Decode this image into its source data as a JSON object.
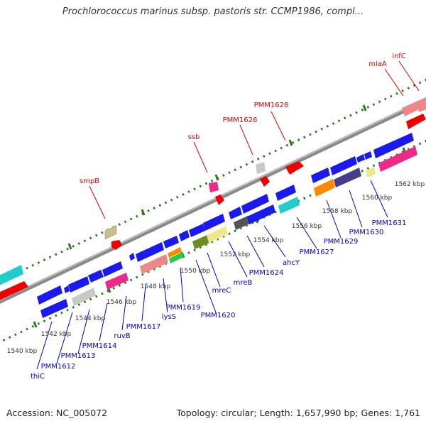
{
  "title": "Prochlorococcus marinus subsp. pastoris str. CCMP1986, compl...",
  "footer": {
    "accession": "Accession: NC_005072",
    "summary": "Topology: circular; Length: 1,657,990 bp; Genes: 1,761"
  },
  "colors": {
    "axis": "#888888",
    "dots": "#2a7a1a",
    "upper_label": "#dd0000",
    "lower_label": "#0000cc",
    "kbp_label": "#333333"
  },
  "scale_labels": [
    {
      "text": "1540 kbp",
      "kbp": 1540
    },
    {
      "text": "1542 kbp",
      "kbp": 1542
    },
    {
      "text": "1544 kbp",
      "kbp": 1544
    },
    {
      "text": "1546 kbp",
      "kbp": 1546
    },
    {
      "text": "1548 kbp",
      "kbp": 1548
    },
    {
      "text": "1550 kbp",
      "kbp": 1550
    },
    {
      "text": "1552 kbp",
      "kbp": 1552
    },
    {
      "text": "1554 kbp",
      "kbp": 1554
    },
    {
      "text": "1556 kbp",
      "kbp": 1556
    },
    {
      "text": "1558 kbp",
      "kbp": 1558
    },
    {
      "text": "1560 kbp",
      "kbp": 1560
    },
    {
      "text": "1562 kbp",
      "kbp": 1562
    }
  ],
  "upper_gene_labels": [
    {
      "name": "smpB"
    },
    {
      "name": "ssb"
    },
    {
      "name": "PMM1626"
    },
    {
      "name": "PMM1628"
    },
    {
      "name": "miaA"
    },
    {
      "name": "infC"
    }
  ],
  "lower_gene_labels": [
    {
      "name": "thiC"
    },
    {
      "name": "PMM1612"
    },
    {
      "name": "PMM1613"
    },
    {
      "name": "PMM1614"
    },
    {
      "name": "ruvB"
    },
    {
      "name": "PMM1617"
    },
    {
      "name": "lysS"
    },
    {
      "name": "PMM1619"
    },
    {
      "name": "PMM1620"
    },
    {
      "name": "mreC"
    },
    {
      "name": "mreB"
    },
    {
      "name": "PMM1624"
    },
    {
      "name": "ahcY"
    },
    {
      "name": "PMM1627"
    },
    {
      "name": "PMM1629"
    },
    {
      "name": "PMM1630"
    },
    {
      "name": "PMM1631"
    }
  ]
}
